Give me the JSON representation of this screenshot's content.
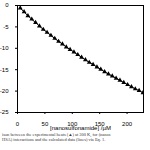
{
  "chart_data": {
    "type": "scatter",
    "xlabel": "[nanosulfonamide] /µM",
    "caption": [
      "ison between the experimental heats (▲) at 300 K, for (nanos",
      "HSA) interactions and the calculated data (lines) via Eq. 1."
    ],
    "x": [
      5,
      12,
      19,
      26,
      33,
      40,
      47,
      54,
      61,
      68,
      75,
      82,
      89,
      96,
      103,
      110,
      117,
      124,
      131,
      138,
      145,
      152,
      159,
      166,
      173,
      180,
      187,
      194,
      201,
      208,
      215,
      222,
      229
    ],
    "series": [
      {
        "type": "scatter",
        "marker": "triangle",
        "color": "#000000",
        "values": [
          -0.6,
          -1.5,
          -2.4,
          -3.2,
          -4.0,
          -4.8,
          -5.6,
          -6.3,
          -7.0,
          -7.7,
          -8.4,
          -9.0,
          -9.7,
          -10.3,
          -10.9,
          -11.5,
          -12.1,
          -12.7,
          -13.3,
          -13.8,
          -14.4,
          -14.9,
          -15.5,
          -16.0,
          -16.5,
          -17.0,
          -17.5,
          -18.0,
          -18.5,
          -19.0,
          -19.5,
          -19.9,
          -20.4
        ]
      },
      {
        "type": "line",
        "line_style": "solid",
        "color": "#000000",
        "values": [
          -0.6,
          -1.5,
          -2.4,
          -3.2,
          -4.0,
          -4.8,
          -5.6,
          -6.3,
          -7.0,
          -7.7,
          -8.4,
          -9.0,
          -9.7,
          -10.3,
          -10.9,
          -11.5,
          -12.1,
          -12.7,
          -13.3,
          -13.8,
          -14.4,
          -14.9,
          -15.5,
          -16.0,
          -16.5,
          -17.0,
          -17.5,
          -18.0,
          -18.5,
          -19.0,
          -19.5,
          -19.9,
          -20.4
        ]
      }
    ],
    "xlim": [
      0,
      230
    ],
    "xticks": [
      0,
      50,
      100,
      150,
      200
    ],
    "ylim": [
      -25,
      0
    ],
    "yticks": [
      0,
      -5,
      -10,
      -15,
      -20,
      -25
    ],
    "grid": false
  }
}
